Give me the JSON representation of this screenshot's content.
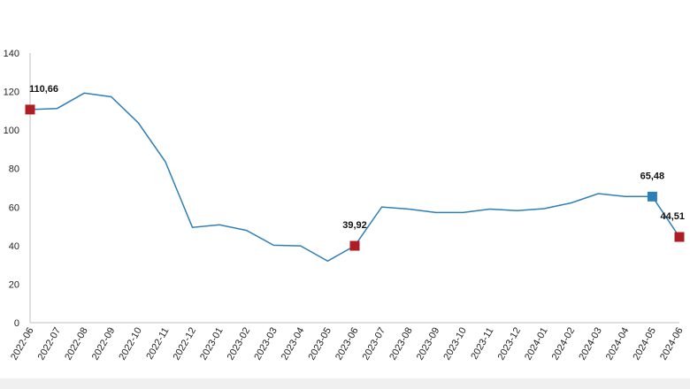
{
  "chart_data": {
    "type": "line",
    "x": [
      "2022-06",
      "2022-07",
      "2022-08",
      "2022-09",
      "2022-10",
      "2022-11",
      "2022-12",
      "2023-01",
      "2023-02",
      "2023-03",
      "2023-04",
      "2023-05",
      "2023-06",
      "2023-07",
      "2023-08",
      "2023-09",
      "2023-10",
      "2023-11",
      "2023-12",
      "2024-01",
      "2024-02",
      "2024-03",
      "2024-04",
      "2024-05",
      "2024-06"
    ],
    "series": [
      {
        "values": [
          110.66,
          111.2,
          119.2,
          117.3,
          103.8,
          83.6,
          49.5,
          50.8,
          47.9,
          40.2,
          39.9,
          32.0,
          39.92,
          60.1,
          59.0,
          57.2,
          57.2,
          59.0,
          58.2,
          59.2,
          62.2,
          67.0,
          65.5,
          65.48,
          44.51
        ]
      }
    ],
    "ylim": [
      0,
      140
    ],
    "yticks": [
      0,
      20,
      40,
      60,
      80,
      100,
      120,
      140
    ],
    "grid": false,
    "line_color": "#2e7fb8",
    "markers": [
      {
        "index": 0,
        "label": "110,66",
        "color": "#b01c24"
      },
      {
        "index": 12,
        "label": "39,92",
        "color": "#b01c24"
      },
      {
        "index": 23,
        "label": "65,48",
        "color": "#2e7fb8"
      },
      {
        "index": 24,
        "label": "44,51",
        "color": "#b01c24"
      }
    ],
    "footer_color": "#f0f0f0"
  }
}
